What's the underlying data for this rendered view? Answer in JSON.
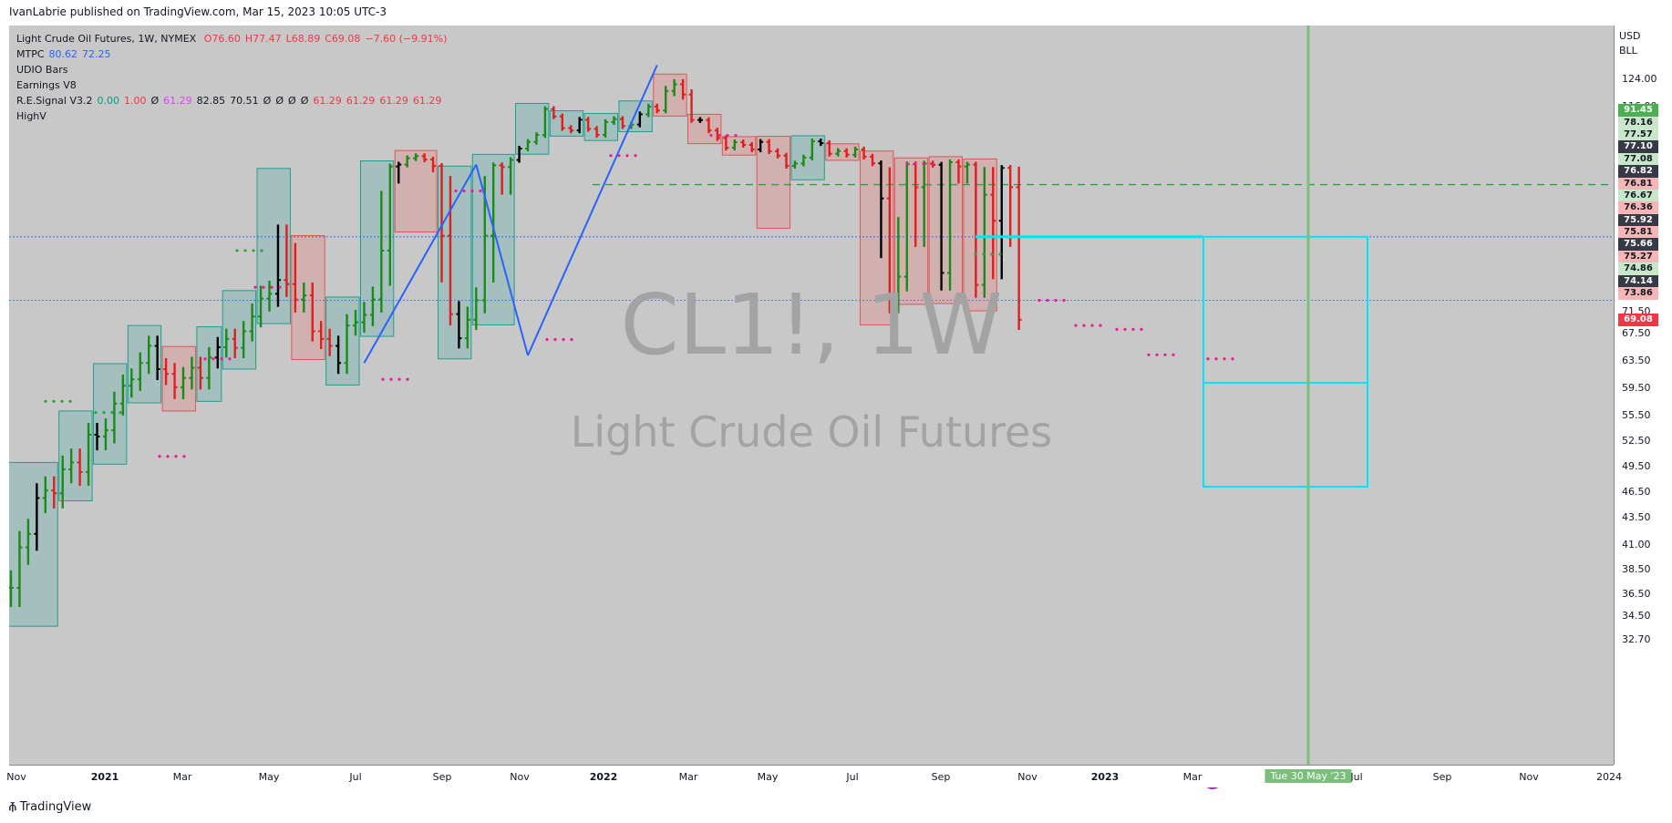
{
  "header": {
    "published_text": "IvanLabrie published on TradingView.com, Mar 15, 2023 10:05 UTC-3"
  },
  "legend": {
    "symbol": "Light Crude Oil Futures, 1W, NYMEX",
    "ohlc": [
      {
        "k": "O",
        "v": "76.60"
      },
      {
        "k": "H",
        "v": "77.47"
      },
      {
        "k": "L",
        "v": "68.89"
      },
      {
        "k": "C",
        "v": "69.08"
      },
      {
        "k": "",
        "v": "−7.60 (−9.91%)"
      }
    ],
    "indicators": [
      {
        "name": "MTPC",
        "values": [
          {
            "v": "80.62",
            "color": "#2962ff"
          },
          {
            "v": "72.25",
            "color": "#2962ff"
          }
        ]
      },
      {
        "name": "UDIO Bars",
        "values": []
      },
      {
        "name": "Earnings V8",
        "values": []
      },
      {
        "name": "R.E.Signal V3.2",
        "values": [
          {
            "v": "0.00",
            "color": "#089981"
          },
          {
            "v": "1.00",
            "color": "#f23645"
          },
          {
            "v": "Ø",
            "color": "#131722"
          },
          {
            "v": "61.29",
            "color": "#e040fb"
          },
          {
            "v": "82.85",
            "color": "#131722"
          },
          {
            "v": "70.51",
            "color": "#131722"
          },
          {
            "v": "Ø",
            "color": "#131722"
          },
          {
            "v": "Ø",
            "color": "#131722"
          },
          {
            "v": "Ø",
            "color": "#131722"
          },
          {
            "v": "Ø",
            "color": "#131722"
          },
          {
            "v": "61.29",
            "color": "#f23645"
          },
          {
            "v": "61.29",
            "color": "#f23645"
          },
          {
            "v": "61.29",
            "color": "#f23645"
          },
          {
            "v": "61.29",
            "color": "#f23645"
          }
        ]
      },
      {
        "name": "HighV",
        "values": []
      }
    ]
  },
  "watermark": {
    "symbol_tf": "CL1!, 1W",
    "description": "Light Crude Oil Futures"
  },
  "price_axis": {
    "currency": "USD",
    "unit": "BLL",
    "ticks": [
      "124.00",
      "116.00",
      "71.50",
      "67.50",
      "63.50",
      "59.50",
      "55.50",
      "52.50",
      "49.50",
      "46.50",
      "43.50",
      "41.00",
      "38.50",
      "36.50",
      "34.50",
      "32.70"
    ],
    "tags": [
      {
        "label": "91.45",
        "bg": "#4caf50",
        "fg": "#ffffff"
      },
      {
        "label": "78.16",
        "bg": "#c8e6c9",
        "fg": "#131722"
      },
      {
        "label": "77.57",
        "bg": "#c8e6c9",
        "fg": "#131722"
      },
      {
        "label": "77.10",
        "bg": "#363a45",
        "fg": "#ffffff"
      },
      {
        "label": "77.08",
        "bg": "#c8e6c9",
        "fg": "#131722"
      },
      {
        "label": "76.82",
        "bg": "#363a45",
        "fg": "#ffffff"
      },
      {
        "label": "76.81",
        "bg": "#f7b5b5",
        "fg": "#131722"
      },
      {
        "label": "76.67",
        "bg": "#c8e6c9",
        "fg": "#131722"
      },
      {
        "label": "76.36",
        "bg": "#f7b5b5",
        "fg": "#131722"
      },
      {
        "label": "75.92",
        "bg": "#363a45",
        "fg": "#ffffff"
      },
      {
        "label": "75.81",
        "bg": "#f7b5b5",
        "fg": "#131722"
      },
      {
        "label": "75.66",
        "bg": "#363a45",
        "fg": "#ffffff"
      },
      {
        "label": "75.27",
        "bg": "#f7b5b5",
        "fg": "#131722"
      },
      {
        "label": "74.86",
        "bg": "#c8e6c9",
        "fg": "#131722"
      },
      {
        "label": "74.14",
        "bg": "#363a45",
        "fg": "#ffffff"
      },
      {
        "label": "73.86",
        "bg": "#f7b5b5",
        "fg": "#131722"
      },
      {
        "label": "69.08",
        "bg": "#f23645",
        "fg": "#ffffff"
      }
    ]
  },
  "time_axis": {
    "ticks": [
      {
        "label": "Nov"
      },
      {
        "label": "2021",
        "bold": true
      },
      {
        "label": "Mar"
      },
      {
        "label": "May"
      },
      {
        "label": "Jul"
      },
      {
        "label": "Sep"
      },
      {
        "label": "Nov"
      },
      {
        "label": "2022",
        "bold": true
      },
      {
        "label": "Mar"
      },
      {
        "label": "May"
      },
      {
        "label": "Jul"
      },
      {
        "label": "Sep"
      },
      {
        "label": "Nov"
      },
      {
        "label": "2023",
        "bold": true
      },
      {
        "label": "Mar"
      },
      {
        "label": "May"
      },
      {
        "label": "Jul"
      },
      {
        "label": "Sep"
      },
      {
        "label": "Nov"
      },
      {
        "label": "2024"
      }
    ],
    "cursor_label": "Tue 30 May '23"
  },
  "footer": {
    "brand": "TradingView"
  },
  "chart_data": {
    "type": "ohlc",
    "title": "Light Crude Oil Futures, 1W, NYMEX",
    "ylabel": "USD",
    "colors": {
      "up": "#1b8a1b",
      "down": "#e01e1e",
      "neutral": "#000000",
      "background": "#c8c8c8",
      "trend": "#2962ff",
      "fib_box": "#00e5ff",
      "cursor": "#7cbf7c"
    },
    "closes": [
      36.5,
      40.2,
      41.5,
      45.3,
      46.1,
      45.8,
      48.5,
      49.3,
      48.2,
      52.5,
      52.3,
      53.1,
      56.7,
      59.1,
      60.0,
      62.4,
      65.0,
      61.5,
      60.8,
      58.9,
      60.2,
      61.7,
      60.2,
      63.2,
      64.8,
      66.1,
      64.7,
      67.3,
      69.5,
      71.7,
      72.3,
      74.0,
      73.5,
      71.6,
      72.1,
      67.3,
      66.1,
      65.0,
      62.4,
      68.2,
      68.7,
      69.7,
      71.6,
      74.9,
      78.3,
      79.4,
      83.0,
      84.2,
      82.3,
      78.6,
      75.3,
      69.8,
      66.2,
      69.1,
      71.5,
      75.3,
      79.0,
      78.0,
      82.0,
      88.5,
      92.3,
      96.2,
      111.0,
      106.8,
      100.2,
      98.8,
      104.9,
      99.7,
      96.3,
      103.6,
      105.3,
      101.3,
      102.2,
      108.0,
      112.4,
      110.2,
      118.9,
      121.0,
      117.8,
      104.8,
      104.7,
      98.8,
      94.5,
      89.0,
      92.1,
      90.6,
      88.0,
      92.3,
      87.0,
      84.5,
      78.7,
      80.0,
      83.4,
      92.6,
      91.6,
      85.6,
      87.1,
      85.0,
      88.0,
      83.9,
      80.1,
      76.3,
      71.5,
      74.2,
      79.6,
      76.6,
      80.0,
      79.3,
      74.3,
      80.7,
      78.3,
      79.4,
      73.4,
      76.4,
      75.7,
      77.5,
      76.6,
      69.1
    ],
    "annotations": [
      "trendline",
      "signal boxes",
      "fib box",
      "cursor Tue 30 May '23"
    ]
  }
}
